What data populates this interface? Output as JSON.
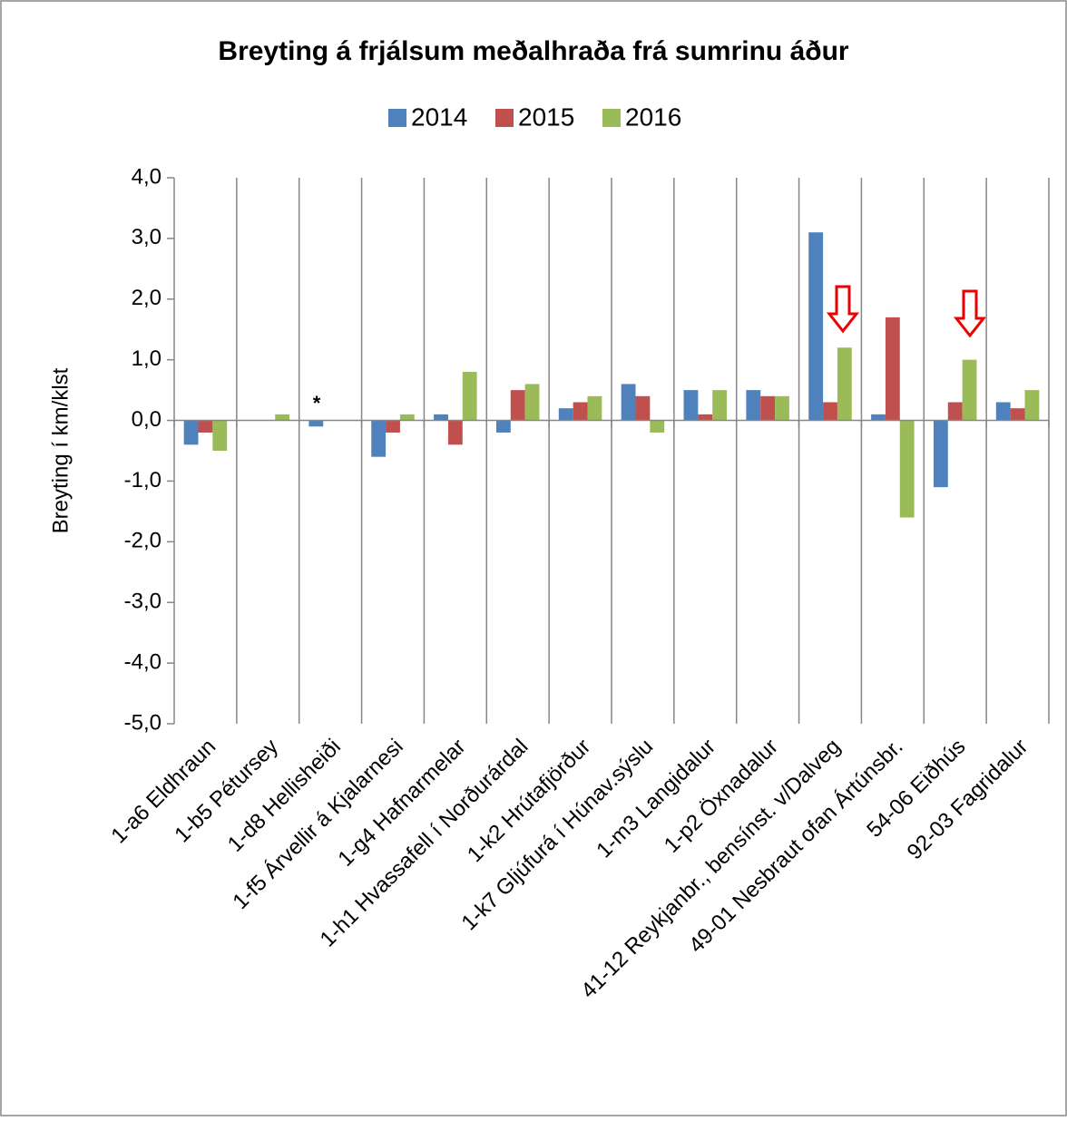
{
  "chart_data": {
    "type": "bar",
    "title": "Breyting á frjálsum meðalhraða frá sumrinu áður",
    "y_label": "Breyting í km/klst",
    "categories": [
      "1-a6 Eldhraun",
      "1-b5 Pétursey",
      "1-d8 Hellisheiði",
      "1-f5 Árvellir á Kjalarnesi",
      "1-g4 Hafnarmelar",
      "1-h1 Hvassafell í Norðurárdal",
      "1-k2 Hrútafjörður",
      "1-k7 Gljúfurá í Húnav.sýslu",
      "1-m3 Langidalur",
      "1-p2 Öxnadalur",
      "41-12 Reykjanbr., bensínst. v/Dalveg",
      "49-01 Nesbraut ofan Ártúnsbr.",
      "54-06 Eiðhús",
      "92-03 Fagridalur"
    ],
    "series": [
      {
        "name": "2014",
        "color": "#4f81bd",
        "values": [
          -0.4,
          null,
          -0.1,
          -0.6,
          0.1,
          -0.2,
          0.2,
          0.6,
          0.5,
          0.5,
          3.1,
          0.1,
          -1.1,
          0.3
        ]
      },
      {
        "name": "2015",
        "color": "#c0504d",
        "values": [
          -0.2,
          null,
          null,
          -0.2,
          -0.4,
          0.5,
          0.3,
          0.4,
          0.1,
          0.4,
          0.3,
          1.7,
          0.3,
          0.2
        ]
      },
      {
        "name": "2016",
        "color": "#9bbb59",
        "values": [
          -0.5,
          0.1,
          null,
          0.1,
          0.8,
          0.6,
          0.4,
          -0.2,
          0.5,
          0.4,
          1.2,
          -1.6,
          1.0,
          0.5
        ]
      }
    ],
    "ylim": [
      -5,
      4
    ],
    "yticks": [
      {
        "value": -5,
        "label": "-5,0"
      },
      {
        "value": -4,
        "label": "-4,0"
      },
      {
        "value": -3,
        "label": "-3,0"
      },
      {
        "value": -2,
        "label": "-2,0"
      },
      {
        "value": -1,
        "label": "-1,0"
      },
      {
        "value": 0,
        "label": "0,0"
      },
      {
        "value": 1,
        "label": "1,0"
      },
      {
        "value": 2,
        "label": "2,0"
      },
      {
        "value": 3,
        "label": "3,0"
      },
      {
        "value": 4,
        "label": "4,0"
      }
    ],
    "annotations": [
      {
        "text": "*"
      }
    ],
    "legend_position": "top",
    "grid": "vertical"
  }
}
